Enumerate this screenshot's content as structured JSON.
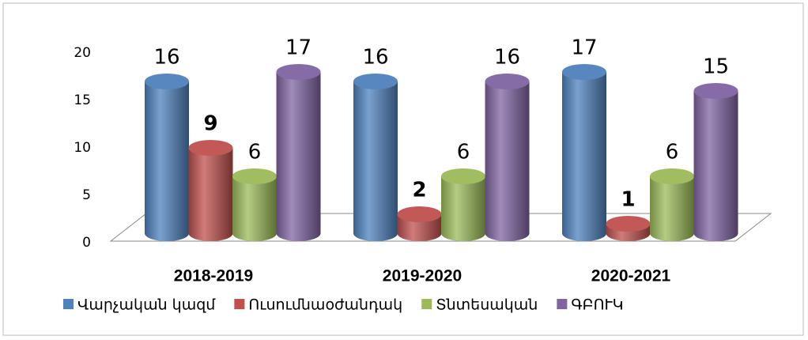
{
  "chart_data": {
    "type": "bar3d",
    "categories": [
      "2018-2019",
      "2019-2020",
      "2020-2021"
    ],
    "series": [
      {
        "name": "Վարչական կազմ",
        "color": "#4f81bd",
        "values": [
          16,
          16,
          17
        ]
      },
      {
        "name": "Ուսումնաօժանդակ",
        "color": "#c0504d",
        "values": [
          9,
          2,
          1
        ],
        "label_bold": true
      },
      {
        "name": "Տնտեսական",
        "color": "#9bbb59",
        "values": [
          6,
          6,
          6
        ]
      },
      {
        "name": "ԳԲՈՒԿ",
        "color": "#8064a2",
        "values": [
          17,
          16,
          15
        ]
      }
    ],
    "ylim": [
      0,
      20
    ],
    "yticks": [
      0,
      5,
      10,
      15,
      20
    ],
    "legend": "bottom"
  }
}
